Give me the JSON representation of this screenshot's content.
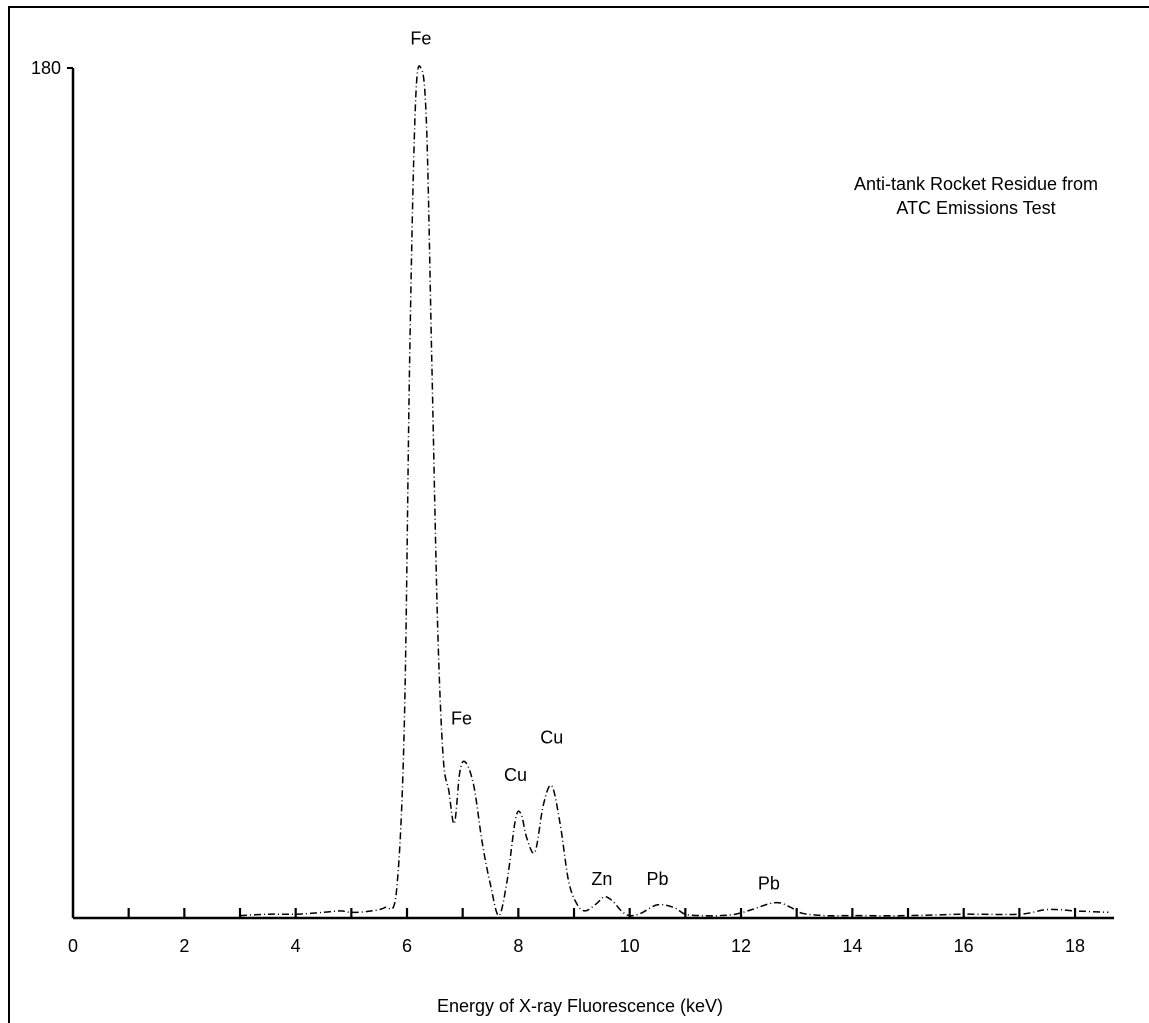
{
  "chart_data": {
    "type": "line",
    "title": "",
    "xlabel": "Energy of X-ray Fluorescence (keV)",
    "ylabel": "",
    "xlim": [
      0,
      18.7
    ],
    "ylim": [
      0,
      180
    ],
    "x_ticks": [
      0,
      2,
      4,
      6,
      8,
      10,
      12,
      14,
      16,
      18
    ],
    "x_minor_ticks": [
      1,
      3,
      5,
      7,
      9,
      11,
      13,
      15,
      17
    ],
    "y_ticks": [
      180
    ],
    "grid": false,
    "annotation_lines": [
      "Anti-tank Rocket Residue from",
      "ATC Emissions Test"
    ],
    "peak_labels": [
      {
        "text": "Fe",
        "x": 6.25,
        "y": 185
      },
      {
        "text": "Fe",
        "x": 6.98,
        "y": 41
      },
      {
        "text": "Cu",
        "x": 7.95,
        "y": 29
      },
      {
        "text": "Cu",
        "x": 8.6,
        "y": 37
      },
      {
        "text": "Zn",
        "x": 9.5,
        "y": 7
      },
      {
        "text": "Pb",
        "x": 10.5,
        "y": 7
      },
      {
        "text": "Pb",
        "x": 12.5,
        "y": 6
      }
    ],
    "series": [
      {
        "x": [
          3.0,
          3.5,
          4.0,
          4.5,
          4.8,
          5.0,
          5.3,
          5.6,
          5.8,
          5.95,
          6.05,
          6.15,
          6.25,
          6.35,
          6.45,
          6.55,
          6.65,
          6.75,
          6.85,
          6.95,
          7.05,
          7.2,
          7.35,
          7.5,
          7.65,
          7.8,
          7.95,
          8.05,
          8.15,
          8.3,
          8.45,
          8.6,
          8.75,
          8.9,
          9.05,
          9.2,
          9.4,
          9.55,
          9.7,
          9.85,
          10.0,
          10.2,
          10.5,
          10.8,
          11.0,
          11.3,
          11.6,
          11.9,
          12.2,
          12.5,
          12.7,
          12.9,
          13.1,
          13.5,
          14.0,
          15.0,
          16.0,
          17.0,
          17.5,
          18.0,
          18.6
        ],
        "y": [
          0.5,
          0.8,
          0.8,
          1.2,
          1.5,
          1.2,
          1.4,
          2.2,
          4.5,
          40,
          120,
          172,
          180,
          168,
          115,
          62,
          34,
          27,
          20,
          31,
          33,
          28,
          16,
          7,
          0.5,
          8,
          21,
          22,
          17,
          14,
          24,
          28,
          20,
          8,
          3,
          1.5,
          3,
          4.5,
          3.5,
          1.5,
          0.5,
          1,
          2.8,
          2.2,
          0.8,
          0.5,
          0.5,
          0.8,
          1.8,
          3,
          3.2,
          2.2,
          1,
          0.5,
          0.5,
          0.5,
          0.8,
          0.8,
          1.8,
          1.5,
          1.2
        ]
      }
    ]
  }
}
